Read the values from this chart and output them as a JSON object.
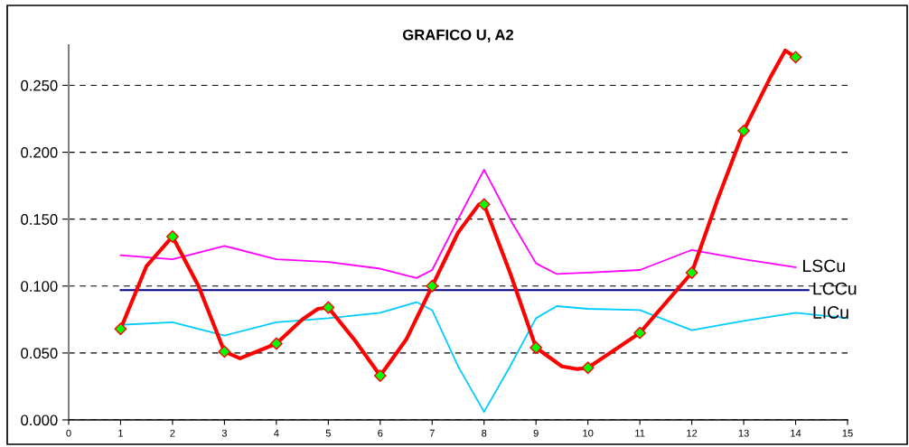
{
  "chart_data": {
    "type": "line",
    "title": "GRAFICO U, A2",
    "series": [
      {
        "name": "LSCu",
        "color": "#ff00ff",
        "x": [
          1,
          2,
          3,
          4,
          5,
          6,
          6.7,
          7,
          7.5,
          8,
          8.5,
          9,
          9.4,
          10,
          11,
          12,
          13,
          14
        ],
        "values": [
          0.123,
          0.12,
          0.13,
          0.12,
          0.118,
          0.113,
          0.106,
          0.112,
          0.15,
          0.187,
          0.15,
          0.117,
          0.109,
          0.11,
          0.112,
          0.127,
          0.12,
          0.114
        ]
      },
      {
        "name": "LCCu",
        "color": "#000080",
        "x": [
          1,
          14.25
        ],
        "values": [
          0.097,
          0.097
        ]
      },
      {
        "name": "LICu",
        "color": "#00ccff",
        "x": [
          1,
          2,
          3,
          4,
          5,
          6,
          6.7,
          7,
          7.5,
          8,
          8.5,
          9,
          9.4,
          10,
          11,
          12,
          13,
          14,
          15
        ],
        "values": [
          0.071,
          0.073,
          0.063,
          0.073,
          0.076,
          0.08,
          0.088,
          0.082,
          0.04,
          0.006,
          0.04,
          0.076,
          0.085,
          0.083,
          0.082,
          0.067,
          0.074,
          0.08,
          0.076
        ]
      },
      {
        "type": "scatter",
        "color": "#00ff00",
        "marker": "diamond",
        "x": [
          1,
          2,
          3,
          4,
          5,
          6,
          7,
          8,
          9,
          10,
          11,
          12,
          13,
          14
        ],
        "values": [
          0.068,
          0.137,
          0.051,
          0.057,
          0.084,
          0.033,
          0.1,
          0.161,
          0.054,
          0.039,
          0.065,
          0.11,
          0.216,
          0.271
        ]
      },
      {
        "color": "#ff0000",
        "x": [
          1,
          1.5,
          2,
          2.5,
          3,
          3.3,
          4,
          4.5,
          4.8,
          5,
          5.5,
          6,
          6.5,
          7,
          7.5,
          7.9,
          8,
          8.5,
          9,
          9.5,
          9.8,
          10,
          11,
          12,
          12.5,
          13,
          13.5,
          13.8,
          14
        ],
        "values": [
          0.068,
          0.115,
          0.137,
          0.1,
          0.051,
          0.046,
          0.057,
          0.075,
          0.083,
          0.084,
          0.06,
          0.033,
          0.06,
          0.1,
          0.14,
          0.161,
          0.161,
          0.11,
          0.054,
          0.04,
          0.038,
          0.039,
          0.065,
          0.11,
          0.165,
          0.216,
          0.255,
          0.276,
          0.271
        ]
      }
    ],
    "xlim": [
      0,
      15
    ],
    "xticks": [
      0,
      1,
      2,
      3,
      4,
      5,
      6,
      7,
      8,
      9,
      10,
      11,
      12,
      13,
      14,
      15
    ],
    "ylim": [
      0,
      0.28
    ],
    "yticks": [
      {
        "value": 0,
        "label": "0.000"
      },
      {
        "value": 0.05,
        "label": "0.050"
      },
      {
        "value": 0.1,
        "label": "0.100"
      },
      {
        "value": 0.15,
        "label": "0.150"
      },
      {
        "value": 0.2,
        "label": "0.200"
      },
      {
        "value": 0.25,
        "label": "0.250"
      }
    ],
    "grid": "y",
    "legend": false,
    "line_style": "solid"
  }
}
